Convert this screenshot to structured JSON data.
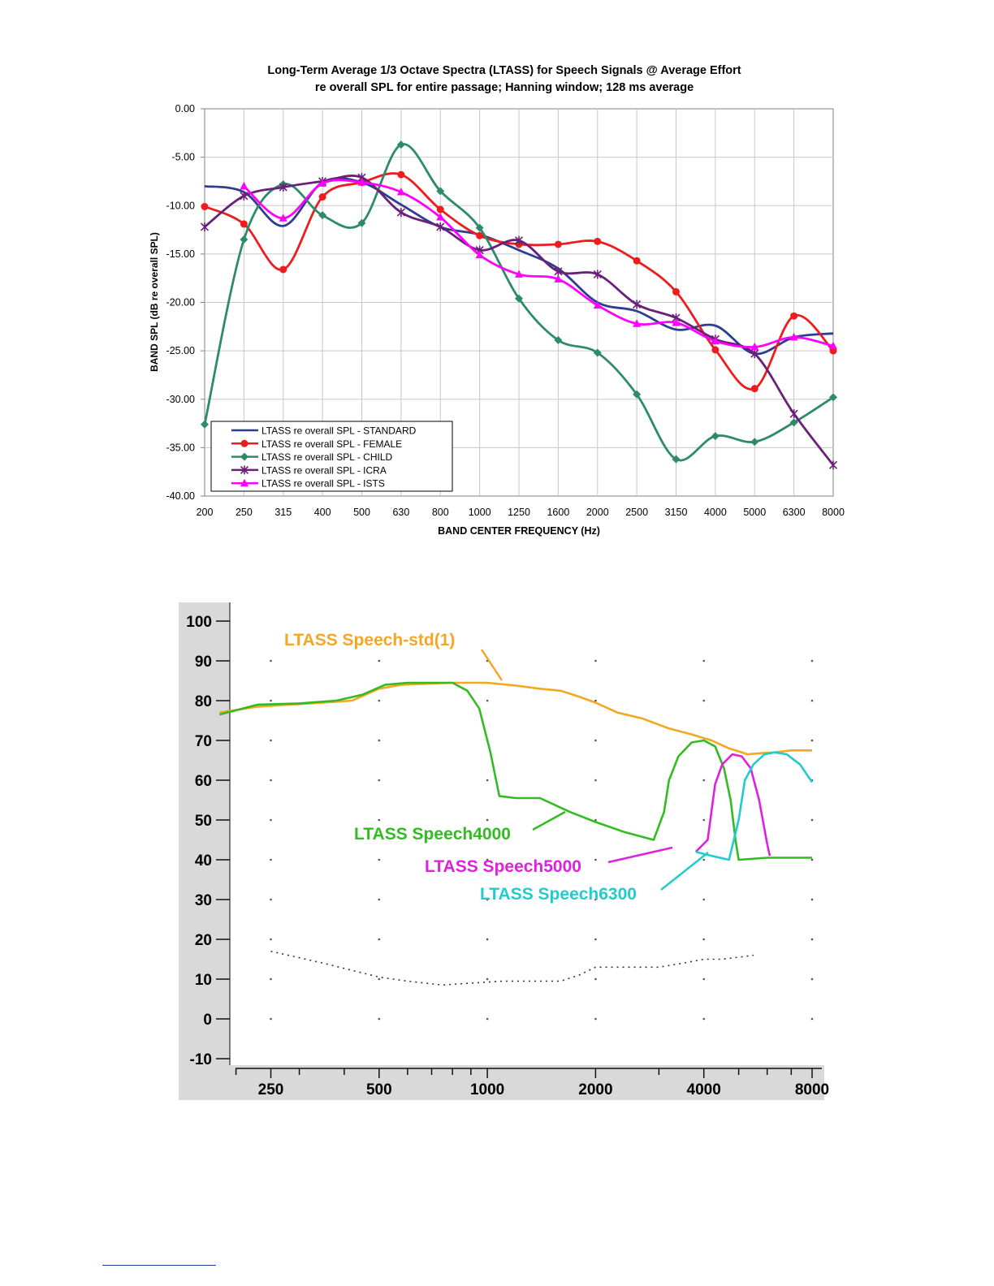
{
  "chart_data": [
    {
      "type": "line",
      "title": "Long-Term Average 1/3 Octave Spectra (LTASS) for Speech Signals @ Average Effort",
      "subtitle": "re overall SPL for entire passage; Hanning window; 128 ms average",
      "xlabel": "BAND CENTER FREQUENCY (Hz)",
      "ylabel": "BAND SPL (dB re overall SPL)",
      "categories": [
        "200",
        "250",
        "315",
        "400",
        "500",
        "630",
        "800",
        "1000",
        "1250",
        "1600",
        "2000",
        "2500",
        "3150",
        "4000",
        "5000",
        "6300",
        "8000"
      ],
      "ylim": [
        -40,
        0
      ],
      "yticks": [
        "0.00",
        "-5.00",
        "-10.00",
        "-15.00",
        "-20.00",
        "-25.00",
        "-30.00",
        "-35.00",
        "-40.00"
      ],
      "grid": true,
      "legend_position": "bottom-left",
      "series": [
        {
          "name": "LTASS re overall SPL - STANDARD",
          "color": "#2e3d8f",
          "marker": "none",
          "values": [
            -8.0,
            -8.6,
            -12.1,
            -7.6,
            -7.6,
            -9.9,
            -12.2,
            -13.0,
            -14.6,
            -16.5,
            -20.0,
            -20.9,
            -22.8,
            -22.4,
            -25.3,
            -23.6,
            -23.2
          ]
        },
        {
          "name": "LTASS re overall SPL - FEMALE",
          "color": "#ee1c1c",
          "marker": "circle",
          "values": [
            -10.1,
            -11.9,
            -16.6,
            -9.1,
            -7.6,
            -6.8,
            -10.4,
            -13.1,
            -14.0,
            -14.0,
            -13.7,
            -15.7,
            -18.9,
            -24.9,
            -28.9,
            -21.4,
            -25.0
          ]
        },
        {
          "name": "LTASS re overall SPL - CHILD",
          "color": "#2e8b6a",
          "marker": "diamond",
          "values": [
            -32.6,
            -13.5,
            -7.8,
            -11.0,
            -11.8,
            -3.7,
            -8.5,
            -12.3,
            -19.6,
            -23.9,
            -25.2,
            -29.5,
            -36.2,
            -33.8,
            -34.4,
            -32.4,
            -29.8
          ]
        },
        {
          "name": "LTASS re overall SPL - ICRA",
          "color": "#6a1f7a",
          "marker": "star",
          "values": [
            -12.2,
            -9.0,
            -8.1,
            -7.5,
            -7.1,
            -10.7,
            -12.2,
            -14.6,
            -13.6,
            -16.8,
            -17.1,
            -20.2,
            -21.6,
            -23.8,
            -25.3,
            -31.5,
            -36.8
          ]
        },
        {
          "name": "LTASS re overall SPL - ISTS",
          "color": "#ff00ff",
          "marker": "triangle",
          "values": [
            null,
            -8.0,
            -11.3,
            -7.7,
            -7.6,
            -8.6,
            -11.2,
            -15.1,
            -17.1,
            -17.6,
            -20.3,
            -22.2,
            -22.1,
            -24.0,
            -24.6,
            -23.6,
            -24.5
          ]
        }
      ]
    },
    {
      "type": "line",
      "title": "",
      "xlabel": "",
      "ylabel": "",
      "xscale": "log",
      "xticks": [
        "250",
        "500",
        "1000",
        "2000",
        "4000",
        "8000"
      ],
      "xlim": [
        180,
        8300
      ],
      "ylim": [
        -10,
        100
      ],
      "yticks": [
        "100",
        "90",
        "80",
        "70",
        "60",
        "50",
        "40",
        "30",
        "20",
        "10",
        "0",
        "-10"
      ],
      "series": [
        {
          "name": "LTASS Speech-std(1)",
          "color": "#f5a623",
          "x": [
            180,
            230,
            280,
            350,
            420,
            500,
            580,
            700,
            800,
            1000,
            1200,
            1400,
            1600,
            1800,
            2000,
            2300,
            2700,
            3200,
            3700,
            4200,
            4700,
            5300,
            5800,
            6300,
            7000,
            7600,
            8000
          ],
          "y": [
            77,
            78.5,
            79,
            79.5,
            80,
            83,
            84,
            84.3,
            84.5,
            84.5,
            83.8,
            83,
            82.5,
            81,
            79.5,
            77,
            75.5,
            73,
            71.5,
            70,
            68,
            66.5,
            66.8,
            67,
            67.5,
            67.5,
            67.5
          ]
        },
        {
          "name": "LTASS Speech4000",
          "color": "#33bb22",
          "x": [
            180,
            230,
            300,
            380,
            450,
            520,
            600,
            700,
            800,
            880,
            950,
            1020,
            1080,
            1200,
            1400,
            1700,
            2000,
            2400,
            2900,
            3100,
            3200,
            3400,
            3700,
            4000,
            4300,
            4550,
            4750,
            4900,
            5000,
            6000,
            7000,
            8000
          ],
          "y": [
            76.5,
            79,
            79.3,
            80,
            81.5,
            84,
            84.5,
            84.5,
            84.5,
            82.5,
            78,
            67,
            56,
            55.5,
            55.5,
            52,
            49.5,
            47,
            45,
            52,
            60,
            66,
            69.5,
            70,
            68.5,
            63,
            55,
            45,
            40,
            40.5,
            40.5,
            40.5
          ]
        },
        {
          "name": "LTASS Speech5000",
          "color": "#dd22dd",
          "x": [
            3800,
            4100,
            4300,
            4500,
            4800,
            5100,
            5400,
            5700,
            6000,
            6100
          ],
          "y": [
            42,
            45,
            59,
            64,
            66.5,
            66,
            63,
            55,
            44,
            41
          ]
        },
        {
          "name": "LTASS Speech6300",
          "color": "#22cccc",
          "x": [
            3800,
            4200,
            4700,
            5000,
            5200,
            5500,
            5900,
            6300,
            6800,
            7400,
            8000
          ],
          "y": [
            42,
            41,
            40,
            50,
            60,
            64,
            66.5,
            67,
            66.5,
            64,
            59.5
          ]
        },
        {
          "name": "dotted baseline",
          "color": "#333333",
          "x": [
            250,
            350,
            500,
            600,
            750,
            900,
            1100,
            1400,
            1600,
            1800,
            2000,
            2500,
            3000,
            3500,
            4000,
            4500,
            5000,
            5500
          ],
          "y": [
            17,
            14,
            10.5,
            9.5,
            8.5,
            9,
            9.5,
            9.5,
            9.5,
            11,
            13,
            13,
            13,
            14,
            15,
            15,
            15.5,
            16
          ]
        }
      ],
      "annotations": [
        {
          "text": "LTASS Speech-std(1)",
          "color": "#f5a623"
        },
        {
          "text": "LTASS Speech4000",
          "color": "#33bb22"
        },
        {
          "text": "LTASS Speech5000",
          "color": "#dd22dd"
        },
        {
          "text": "LTASS Speech6300",
          "color": "#22cccc"
        }
      ]
    }
  ]
}
